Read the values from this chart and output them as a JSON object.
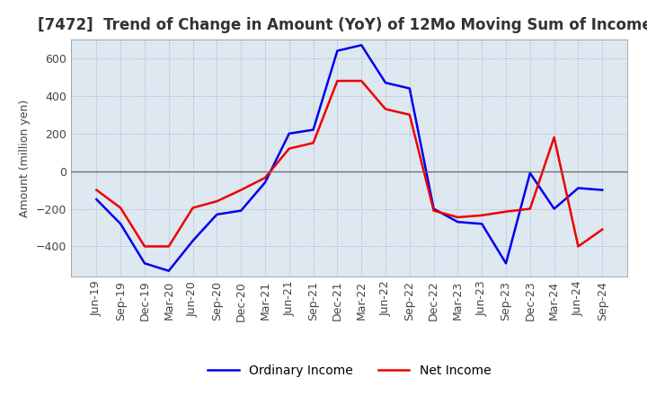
{
  "title": "[7472]  Trend of Change in Amount (YoY) of 12Mo Moving Sum of Incomes",
  "ylabel": "Amount (million yen)",
  "background_color": "#ffffff",
  "plot_bg_color": "#dde8f0",
  "grid_color": "#aaaacc",
  "x_labels": [
    "Jun-19",
    "Sep-19",
    "Dec-19",
    "Mar-20",
    "Jun-20",
    "Sep-20",
    "Dec-20",
    "Mar-21",
    "Jun-21",
    "Sep-21",
    "Dec-21",
    "Mar-22",
    "Jun-22",
    "Sep-22",
    "Dec-22",
    "Mar-23",
    "Jun-23",
    "Sep-23",
    "Dec-23",
    "Mar-24",
    "Jun-24",
    "Sep-24"
  ],
  "ordinary_income": [
    -150,
    -280,
    -490,
    -530,
    -370,
    -230,
    -210,
    -60,
    200,
    220,
    640,
    670,
    470,
    440,
    -200,
    -270,
    -280,
    -490,
    -10,
    -200,
    -90,
    -100
  ],
  "net_income": [
    -100,
    -195,
    -400,
    -400,
    -195,
    -160,
    -100,
    -35,
    120,
    150,
    480,
    480,
    330,
    300,
    -210,
    -245,
    -235,
    -215,
    -200,
    180,
    -400,
    -310
  ],
  "ordinary_color": "#0000ee",
  "net_color": "#ee0000",
  "ylim": [
    -560,
    700
  ],
  "yticks": [
    -400,
    -200,
    0,
    200,
    400,
    600
  ],
  "title_fontsize": 12,
  "axis_fontsize": 9,
  "tick_fontsize": 9,
  "legend_fontsize": 10
}
